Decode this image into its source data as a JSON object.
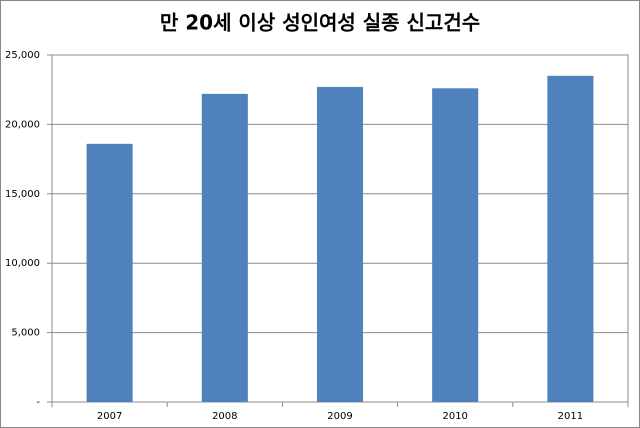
{
  "chart_data": {
    "type": "bar",
    "title": "만 20세 이상 성인여성 실종 신고건수",
    "categories": [
      "2007",
      "2008",
      "2009",
      "2010",
      "2011"
    ],
    "values": [
      18600,
      22200,
      22700,
      22600,
      23500
    ],
    "color": "#4f81bd",
    "ylim": [
      0,
      25000
    ],
    "yticks": [
      {
        "value": 0,
        "label": "-"
      },
      {
        "value": 5000,
        "label": "5,000"
      },
      {
        "value": 10000,
        "label": "10,000"
      },
      {
        "value": 15000,
        "label": "15,000"
      },
      {
        "value": 20000,
        "label": "20,000"
      },
      {
        "value": 25000,
        "label": "25,000"
      }
    ],
    "grid": true
  }
}
